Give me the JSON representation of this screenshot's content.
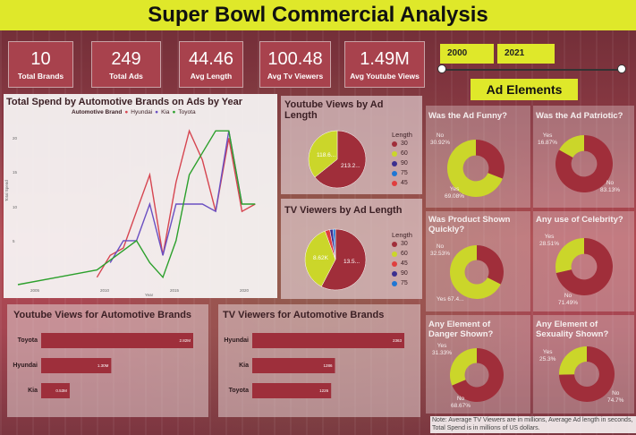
{
  "title": "Super Bowl Commercial Analysis",
  "kpis": [
    {
      "value": "10",
      "label": "Total Brands"
    },
    {
      "value": "249",
      "label": "Total Ads"
    },
    {
      "value": "44.46",
      "label": "Avg Length"
    },
    {
      "value": "100.48",
      "label": "Avg Tv Viewers"
    },
    {
      "value": "1.49M",
      "label": "Avg Youtube Views"
    }
  ],
  "year_filter": {
    "start": "2000",
    "end": "2021"
  },
  "ad_elements_label": "Ad Elements",
  "colors": {
    "accent": "#dfe82a",
    "maroon": "#a8424d",
    "bar": "#9e2f3b",
    "yes": "#cbd62a",
    "no": "#a02e3a"
  },
  "line_chart": {
    "title": "Total Spend by Automotive Brands on Ads by Year",
    "legend_title": "Automotive Brand",
    "ylabel": "Total Spend",
    "xlabel": "Year",
    "y_ticks": [
      "20",
      "15",
      "10",
      "5"
    ],
    "x_ticks": [
      "2005",
      "2010",
      "2015",
      "2020"
    ]
  },
  "youtube_by_length": {
    "title": "Youtube Views by Ad Length",
    "labels": [
      "118.6...",
      "213.2..."
    ]
  },
  "tv_by_length": {
    "title": "TV Viewers by Ad Length",
    "labels": [
      "8.62K",
      "13.5..."
    ]
  },
  "length_legend": {
    "title": "Length",
    "items": [
      "30",
      "60",
      "90",
      "75",
      "45"
    ]
  },
  "length_legend_2": {
    "title": "Length",
    "items": [
      "30",
      "60",
      "45",
      "90",
      "75"
    ]
  },
  "youtube_brands": {
    "title": "Youtube Views for Automotive Brands"
  },
  "tv_brands": {
    "title": "TV Viewers for Automotive Brands"
  },
  "donuts": [
    {
      "title": "Was the Ad Funny?",
      "no": "No\n30.92%",
      "yes": "Yes\n69.08%"
    },
    {
      "title": "Was the Ad Patriotic?",
      "no": "No\n83.13%",
      "yes": "Yes\n16.87%"
    },
    {
      "title": "Was Product Shown Quickly?",
      "no": "No\n32.53%",
      "yes": "Yes 67.4..."
    },
    {
      "title": "Any use of Celebrity?",
      "no": "No\n71.49%",
      "yes": "Yes\n28.51%"
    },
    {
      "title": "Any Element of Danger Shown?",
      "no": "No\n68.67%",
      "yes": "Yes\n31.33%"
    },
    {
      "title": "Any Element of Sexuality Shown?",
      "no": "No\n74.7%",
      "yes": "Yes\n25.3%"
    }
  ],
  "note": "Note: Average TV Viewers are in millions, Average Ad length in seconds, Total Spend is in millions of US dollars.",
  "chart_data": [
    {
      "type": "line",
      "title": "Total Spend by Automotive Brands on Ads by Year",
      "xlabel": "Year",
      "ylabel": "Total Spend",
      "xlim": [
        2003,
        2022
      ],
      "ylim": [
        0,
        22
      ],
      "legend": "top",
      "series": [
        {
          "name": "Hyundai",
          "color": "#d64550",
          "x": [
            2009,
            2010,
            2011,
            2012,
            2013,
            2014,
            2015,
            2016,
            2017,
            2018,
            2019,
            2020,
            2021
          ],
          "y": [
            1,
            4,
            5,
            10,
            15,
            4,
            14,
            21,
            17,
            10,
            20,
            10,
            11
          ]
        },
        {
          "name": "Kia",
          "color": "#6a4fc2",
          "x": [
            2010,
            2011,
            2012,
            2013,
            2014,
            2015,
            2016,
            2017,
            2018,
            2019,
            2020
          ],
          "y": [
            3,
            6,
            6,
            11,
            4,
            11,
            11,
            11,
            10,
            21,
            11
          ]
        },
        {
          "name": "Toyota",
          "color": "#2ca02c",
          "x": [
            2003,
            2006,
            2009,
            2012,
            2013,
            2014,
            2015,
            2016,
            2017,
            2018,
            2019,
            2020,
            2021
          ],
          "y": [
            0,
            1,
            2,
            6,
            3,
            1,
            6,
            15,
            18,
            21,
            21,
            11,
            11
          ]
        }
      ]
    },
    {
      "type": "pie",
      "title": "Youtube Views by Ad Length",
      "categories": [
        "30",
        "60"
      ],
      "values": [
        213.2,
        118.6
      ],
      "colors": [
        "#a02e3a",
        "#cbd62a"
      ]
    },
    {
      "type": "pie",
      "title": "TV Viewers by Ad Length",
      "categories": [
        "30",
        "60",
        "45",
        "90",
        "75"
      ],
      "values": [
        13.5,
        8.62,
        0.6,
        0.4,
        0.3
      ],
      "colors": [
        "#a02e3a",
        "#cbd62a",
        "#e03e3e",
        "#3c2f8f",
        "#1f77d4"
      ]
    },
    {
      "type": "bar",
      "title": "Youtube Views for Automotive Brands",
      "categories": [
        "Toyota",
        "Hyundai",
        "Kia"
      ],
      "values": [
        2.82,
        1.3,
        0.53
      ],
      "data_labels": [
        "2.82M",
        "1.30M",
        "0.53M"
      ],
      "orientation": "horizontal"
    },
    {
      "type": "bar",
      "title": "TV Viewers for Automotive Brands",
      "categories": [
        "Hyundai",
        "Kia",
        "Toyota"
      ],
      "values": [
        2363,
        1286,
        1226
      ],
      "data_labels": [
        "2363",
        "1286",
        "1226"
      ],
      "orientation": "horizontal"
    },
    {
      "type": "pie",
      "title": "Was the Ad Funny?",
      "categories": [
        "No",
        "Yes"
      ],
      "values": [
        30.92,
        69.08
      ]
    },
    {
      "type": "pie",
      "title": "Was the Ad Patriotic?",
      "categories": [
        "No",
        "Yes"
      ],
      "values": [
        83.13,
        16.87
      ]
    },
    {
      "type": "pie",
      "title": "Was Product Shown Quickly?",
      "categories": [
        "No",
        "Yes"
      ],
      "values": [
        32.53,
        67.47
      ]
    },
    {
      "type": "pie",
      "title": "Any use of Celebrity?",
      "categories": [
        "No",
        "Yes"
      ],
      "values": [
        71.49,
        28.51
      ]
    },
    {
      "type": "pie",
      "title": "Any Element of Danger Shown?",
      "categories": [
        "No",
        "Yes"
      ],
      "values": [
        68.67,
        31.33
      ]
    },
    {
      "type": "pie",
      "title": "Any Element of Sexuality Shown?",
      "categories": [
        "No",
        "Yes"
      ],
      "values": [
        74.7,
        25.3
      ]
    }
  ]
}
